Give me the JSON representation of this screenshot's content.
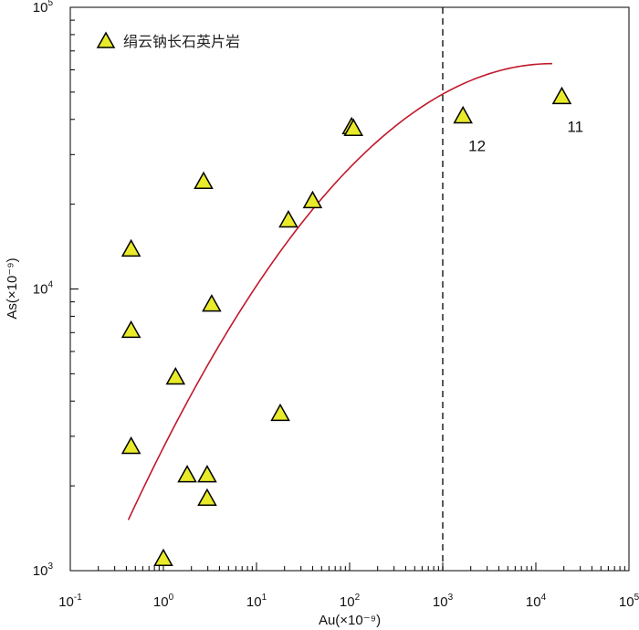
{
  "chart_data": {
    "type": "scatter",
    "title": "",
    "xlabel": "Au(×10⁻⁹)",
    "ylabel": "As(×10⁻⁹)",
    "x_scale": "log",
    "y_scale": "log",
    "xlim": [
      0.1,
      100000
    ],
    "ylim": [
      1000,
      100000
    ],
    "x_ticks": [
      {
        "value": 0.1,
        "base": "10",
        "exp": "-1"
      },
      {
        "value": 1,
        "base": "10",
        "exp": "0"
      },
      {
        "value": 10,
        "base": "10",
        "exp": "1"
      },
      {
        "value": 100,
        "base": "10",
        "exp": "2"
      },
      {
        "value": 1000,
        "base": "10",
        "exp": "3"
      },
      {
        "value": 10000,
        "base": "10",
        "exp": "4"
      },
      {
        "value": 100000,
        "base": "10",
        "exp": "5"
      }
    ],
    "y_ticks": [
      {
        "value": 1000,
        "base": "10",
        "exp": "3"
      },
      {
        "value": 10000,
        "base": "10",
        "exp": "4"
      },
      {
        "value": 100000,
        "base": "10",
        "exp": "5"
      }
    ],
    "grid": false,
    "legend_position": "top-left",
    "series": [
      {
        "name": "绢云钠长石英片岩",
        "marker": "triangle",
        "color": "#e8ea2a",
        "edge_color": "#000000",
        "points": [
          {
            "x": 0.45,
            "y": 13800
          },
          {
            "x": 0.45,
            "y": 7100
          },
          {
            "x": 0.45,
            "y": 2750
          },
          {
            "x": 1.0,
            "y": 1100
          },
          {
            "x": 1.35,
            "y": 4850
          },
          {
            "x": 1.8,
            "y": 2180
          },
          {
            "x": 2.7,
            "y": 24000
          },
          {
            "x": 2.95,
            "y": 2180
          },
          {
            "x": 2.95,
            "y": 1800
          },
          {
            "x": 3.3,
            "y": 8800
          },
          {
            "x": 18,
            "y": 3600
          },
          {
            "x": 22,
            "y": 17500
          },
          {
            "x": 40,
            "y": 20500
          },
          {
            "x": 105,
            "y": 37500
          },
          {
            "x": 110,
            "y": 37000
          },
          {
            "x": 1650,
            "y": 41000,
            "label": "12"
          },
          {
            "x": 19000,
            "y": 48000,
            "label": "11"
          }
        ]
      }
    ],
    "fit_curve": {
      "color": "#c0182a",
      "x_range": [
        0.42,
        15000
      ],
      "x_log_start": -0.377,
      "y_log_start": 3.18,
      "y_log_max": 4.8
    },
    "reference_line": {
      "axis": "x",
      "value": 1000,
      "style": "dashed",
      "color": "#000000"
    }
  }
}
